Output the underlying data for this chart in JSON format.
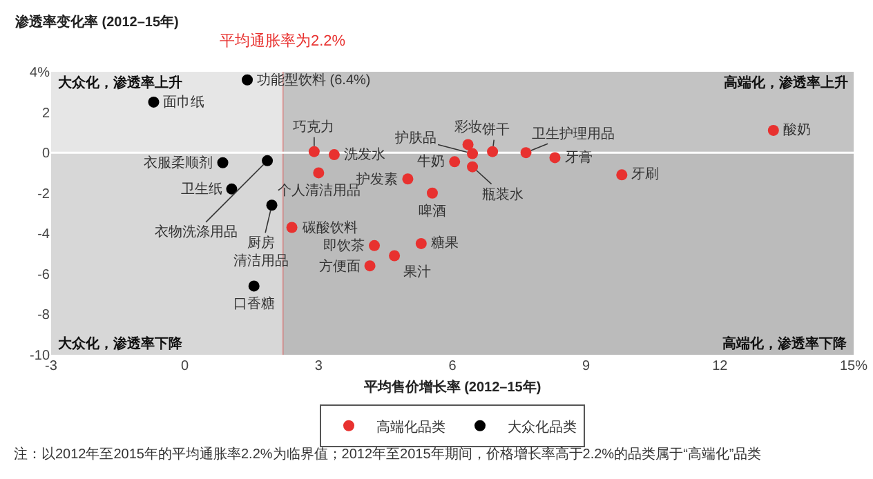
{
  "chart_data": {
    "type": "scatter",
    "xlabel": "平均售价增长率 (2012–15年)",
    "ylabel": "渗透率变化率 (2012–15年)",
    "xlim": [
      -3,
      15
    ],
    "xticks": [
      -3,
      0,
      3,
      6,
      9,
      12,
      {
        "value": 15,
        "label": "15%"
      }
    ],
    "ylim": [
      -10,
      4
    ],
    "yticks": [
      -10,
      -8,
      -6,
      -4,
      -2,
      0,
      2,
      {
        "value": 4,
        "label": "4%"
      }
    ],
    "marker": "circle",
    "legend": "bottom",
    "series": [
      {
        "name": "高端化品类",
        "color": "#e8312f",
        "x": [
          2.9,
          3.35,
          3.0,
          5.0,
          5.55,
          2.4,
          4.25,
          5.3,
          4.7,
          4.15,
          6.05,
          6.35,
          6.45,
          6.45,
          6.9,
          7.65,
          8.3,
          9.8,
          13.2
        ],
        "values": [
          0.05,
          -0.1,
          -1.0,
          -1.3,
          -2.0,
          -3.7,
          -4.6,
          -4.5,
          -5.1,
          -5.6,
          -0.45,
          0.4,
          -0.05,
          -0.7,
          0.05,
          0.0,
          -0.25,
          -1.1,
          1.1
        ]
      },
      {
        "name": "大众化品类",
        "color": "#000000",
        "x": [
          1.4,
          -0.7,
          0.85,
          1.85,
          1.05,
          1.95,
          1.55
        ],
        "values": [
          3.6,
          2.5,
          -0.5,
          -0.4,
          -1.8,
          -2.6,
          -6.6
        ]
      }
    ],
    "bands": [
      {
        "axis": "x",
        "from": 2.2,
        "to": 15,
        "color": "#a0a0a0"
      },
      {
        "axis": "y",
        "from": -10,
        "to": 0,
        "color": "#9a9a9a"
      }
    ],
    "ref_lines": [
      {
        "axis": "x",
        "value": 2.2,
        "label": "平均通胀率为2.2%",
        "color": "#e8312f"
      },
      {
        "axis": "y",
        "value": 0,
        "color": "#ffffff"
      }
    ],
    "annotations": [
      {
        "text": "功能型饮料 (6.4%)",
        "x": 1.4,
        "y": 3.6
      },
      {
        "text": "面巾纸",
        "x": -0.7,
        "y": 2.5
      },
      {
        "text": "衣服柔顺剂",
        "x": 0.85,
        "y": -0.5
      },
      {
        "text": "衣物洗涤用品",
        "x": 1.85,
        "y": -0.4
      },
      {
        "text": "卫生纸",
        "x": 1.05,
        "y": -1.8
      },
      {
        "text": "厨房清洁用品",
        "x": 1.95,
        "y": -2.6
      },
      {
        "text": "口香糖",
        "x": 1.55,
        "y": -6.6
      },
      {
        "text": "巧克力",
        "x": 2.9,
        "y": 0.05
      },
      {
        "text": "洗发水",
        "x": 3.35,
        "y": -0.1
      },
      {
        "text": "个人清洁用品",
        "x": 3.0,
        "y": -1.0
      },
      {
        "text": "护发素",
        "x": 5.0,
        "y": -1.3
      },
      {
        "text": "啤酒",
        "x": 5.55,
        "y": -2.0
      },
      {
        "text": "碳酸饮料",
        "x": 2.4,
        "y": -3.7
      },
      {
        "text": "即饮茶",
        "x": 4.25,
        "y": -4.6
      },
      {
        "text": "糖果",
        "x": 5.3,
        "y": -4.5
      },
      {
        "text": "果汁",
        "x": 4.7,
        "y": -5.1
      },
      {
        "text": "方便面",
        "x": 4.15,
        "y": -5.6
      },
      {
        "text": "牛奶",
        "x": 6.05,
        "y": -0.45
      },
      {
        "text": "彩妆",
        "x": 6.35,
        "y": 0.4
      },
      {
        "text": "护肤品",
        "x": 6.45,
        "y": -0.05
      },
      {
        "text": "瓶装水",
        "x": 6.45,
        "y": -0.7
      },
      {
        "text": "饼干",
        "x": 6.9,
        "y": 0.05
      },
      {
        "text": "卫生护理用品",
        "x": 7.65,
        "y": 0.0
      },
      {
        "text": "牙膏",
        "x": 8.3,
        "y": -0.25
      },
      {
        "text": "牙刷",
        "x": 9.8,
        "y": -1.1
      },
      {
        "text": "酸奶",
        "x": 13.2,
        "y": 1.1
      },
      "大众化，渗透率上升",
      "高端化，渗透率上升",
      "大众化，渗透率下降",
      "高端化，渗透率下降",
      "注：以2012年至2015年的平均通胀率2.2%为临界值；2012年至2015年期间，价格增长率高于2.2%的品类属于“高端化”品类"
    ]
  }
}
